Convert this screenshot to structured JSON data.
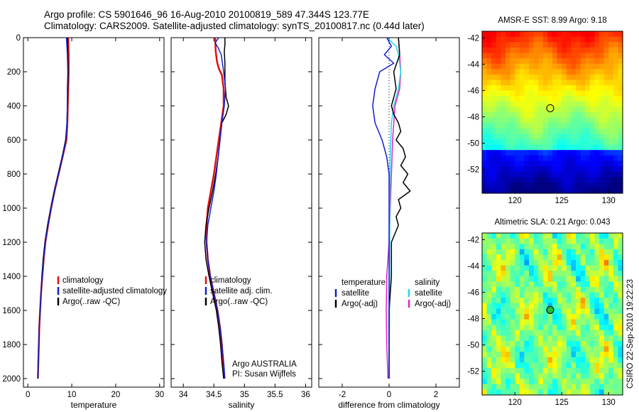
{
  "header": {
    "title_line1": "Argo profile: CS 5901646_96 16-Aug-2010 20100819_589 47.344S 123.77E",
    "title_line2": "Climatology: CARS2009. Satellite-adjusted climatology: synTS_20100817.nc (0.44d later)"
  },
  "colors": {
    "climatology": "#e01010",
    "satellite": "#1020d0",
    "argo": "#000000",
    "temperature_diff": "#1020d0",
    "salinity_satellite": "#20d8e8",
    "salinity_argo": "#e020d0"
  },
  "footer": {
    "stamp": "CSIRO 22-Sep-2010 19:22:23"
  },
  "chart_data": [
    {
      "id": "temperature",
      "type": "line",
      "xlabel": "temperature",
      "xlim": [
        -1,
        31
      ],
      "xticks": [
        0,
        10,
        20,
        30
      ],
      "ylim": [
        2050,
        0
      ],
      "yticks": [
        0,
        200,
        400,
        600,
        800,
        1000,
        1200,
        1400,
        1600,
        1800,
        2000
      ],
      "legend": [
        {
          "label": "climatology",
          "series": "climatology"
        },
        {
          "label": "satellite-adjusted climatology",
          "series": "satellite"
        },
        {
          "label": "Argo(..raw -QC)",
          "series": "argo"
        }
      ],
      "series": [
        {
          "key": "climatology",
          "color": "#e01010",
          "width": 2.5,
          "points": [
            [
              9.2,
              0
            ],
            [
              9.3,
              100
            ],
            [
              9.3,
              200
            ],
            [
              9.2,
              300
            ],
            [
              9.1,
              400
            ],
            [
              9.0,
              500
            ],
            [
              8.8,
              600
            ],
            [
              7.9,
              700
            ],
            [
              7.0,
              800
            ],
            [
              6.1,
              900
            ],
            [
              5.3,
              1000
            ],
            [
              4.6,
              1100
            ],
            [
              4.0,
              1200
            ],
            [
              3.6,
              1300
            ],
            [
              3.3,
              1400
            ],
            [
              3.0,
              1500
            ],
            [
              2.8,
              1600
            ],
            [
              2.6,
              1700
            ],
            [
              2.5,
              1800
            ],
            [
              2.4,
              1900
            ],
            [
              2.3,
              2000
            ]
          ]
        },
        {
          "key": "argo",
          "color": "#000000",
          "width": 1.5,
          "points": [
            [
              9.0,
              0
            ],
            [
              9.1,
              100
            ],
            [
              9.2,
              200
            ],
            [
              9.1,
              300
            ],
            [
              9.0,
              400
            ],
            [
              8.9,
              500
            ],
            [
              8.6,
              600
            ],
            [
              7.8,
              700
            ],
            [
              6.9,
              800
            ],
            [
              6.0,
              900
            ],
            [
              5.2,
              1000
            ],
            [
              4.5,
              1100
            ],
            [
              3.9,
              1200
            ],
            [
              3.5,
              1300
            ],
            [
              3.2,
              1400
            ],
            [
              3.0,
              1500
            ],
            [
              2.8,
              1600
            ],
            [
              2.6,
              1700
            ],
            [
              2.5,
              1800
            ],
            [
              2.4,
              1900
            ],
            [
              2.3,
              2000
            ]
          ]
        },
        {
          "key": "satellite",
          "color": "#1020d0",
          "width": 1.5,
          "points": [
            [
              8.8,
              0
            ],
            [
              9.0,
              100
            ],
            [
              9.1,
              200
            ],
            [
              9.0,
              300
            ],
            [
              9.0,
              400
            ],
            [
              8.9,
              500
            ],
            [
              8.7,
              600
            ],
            [
              7.9,
              700
            ],
            [
              7.0,
              800
            ],
            [
              6.1,
              900
            ],
            [
              5.3,
              1000
            ],
            [
              4.6,
              1100
            ],
            [
              4.0,
              1200
            ],
            [
              3.6,
              1300
            ],
            [
              3.3,
              1400
            ],
            [
              3.0,
              1500
            ],
            [
              2.8,
              1600
            ],
            [
              2.6,
              1700
            ],
            [
              2.5,
              1800
            ],
            [
              2.4,
              1900
            ],
            [
              2.3,
              2000
            ]
          ]
        }
      ]
    },
    {
      "id": "salinity",
      "type": "line",
      "xlabel": "salinity",
      "xlim": [
        33.8,
        36.1
      ],
      "xticks": [
        34,
        34.5,
        35,
        35.5,
        36
      ],
      "ylim": [
        2050,
        0
      ],
      "yticks": [
        0,
        200,
        400,
        600,
        800,
        1000,
        1200,
        1400,
        1600,
        1800,
        2000
      ],
      "legend": [
        {
          "label": "climatology",
          "series": "climatology"
        },
        {
          "label": "satellite adj. clim.",
          "series": "satellite"
        },
        {
          "label": "Argo(..raw -QC)",
          "series": "argo"
        }
      ],
      "annotation": [
        "Argo AUSTRALIA",
        "PI: Susan Wijffels"
      ],
      "series": [
        {
          "key": "climatology",
          "color": "#e01010",
          "width": 2.5,
          "points": [
            [
              34.52,
              0
            ],
            [
              34.53,
              80
            ],
            [
              34.55,
              140
            ],
            [
              34.58,
              180
            ],
            [
              34.63,
              220
            ],
            [
              34.66,
              300
            ],
            [
              34.66,
              400
            ],
            [
              34.62,
              500
            ],
            [
              34.58,
              600
            ],
            [
              34.54,
              700
            ],
            [
              34.5,
              800
            ],
            [
              34.45,
              900
            ],
            [
              34.4,
              1000
            ],
            [
              34.38,
              1100
            ],
            [
              34.38,
              1200
            ],
            [
              34.4,
              1300
            ],
            [
              34.44,
              1400
            ],
            [
              34.5,
              1500
            ],
            [
              34.56,
              1600
            ],
            [
              34.6,
              1700
            ],
            [
              34.63,
              1800
            ],
            [
              34.65,
              1900
            ],
            [
              34.67,
              2000
            ]
          ]
        },
        {
          "key": "argo",
          "color": "#000000",
          "width": 1.5,
          "points": [
            [
              34.68,
              0
            ],
            [
              34.68,
              40
            ],
            [
              34.67,
              80
            ],
            [
              34.68,
              150
            ],
            [
              34.68,
              250
            ],
            [
              34.7,
              350
            ],
            [
              34.74,
              400
            ],
            [
              34.7,
              450
            ],
            [
              34.63,
              500
            ],
            [
              34.6,
              600
            ],
            [
              34.57,
              700
            ],
            [
              34.53,
              800
            ],
            [
              34.48,
              900
            ],
            [
              34.42,
              1000
            ],
            [
              34.37,
              1100
            ],
            [
              34.35,
              1200
            ],
            [
              34.37,
              1300
            ],
            [
              34.42,
              1400
            ],
            [
              34.48,
              1500
            ],
            [
              34.54,
              1600
            ],
            [
              34.58,
              1700
            ],
            [
              34.61,
              1800
            ],
            [
              34.63,
              1900
            ],
            [
              34.66,
              2000
            ]
          ]
        },
        {
          "key": "satellite",
          "color": "#1020d0",
          "width": 1.5,
          "points": [
            [
              34.58,
              0
            ],
            [
              34.52,
              30
            ],
            [
              34.57,
              60
            ],
            [
              34.62,
              100
            ],
            [
              34.66,
              200
            ],
            [
              34.69,
              300
            ],
            [
              34.67,
              400
            ],
            [
              34.63,
              500
            ],
            [
              34.6,
              600
            ],
            [
              34.57,
              700
            ],
            [
              34.54,
              800
            ],
            [
              34.5,
              900
            ],
            [
              34.45,
              1000
            ],
            [
              34.4,
              1100
            ],
            [
              34.38,
              1200
            ],
            [
              34.4,
              1300
            ],
            [
              34.44,
              1400
            ],
            [
              34.5,
              1500
            ],
            [
              34.56,
              1600
            ],
            [
              34.6,
              1700
            ],
            [
              34.63,
              1800
            ],
            [
              34.66,
              1900
            ],
            [
              34.68,
              2000
            ]
          ]
        }
      ]
    },
    {
      "id": "difference",
      "type": "line",
      "xlabel": "difference from climatology",
      "xlim": [
        -3,
        3
      ],
      "xticks": [
        -2,
        0,
        2
      ],
      "ylim": [
        2050,
        0
      ],
      "yticks": [
        0,
        200,
        400,
        600,
        800,
        1000,
        1200,
        1400,
        1600,
        1800,
        2000
      ],
      "zero_line": true,
      "legend_columns": [
        {
          "heading": "temperature",
          "items": [
            {
              "label": "satellite",
              "series": "t_sat"
            },
            {
              "label": "Argo(-adj)",
              "series": "t_argo"
            }
          ]
        },
        {
          "heading": "salinity",
          "items": [
            {
              "label": "satellite",
              "series": "s_sat"
            },
            {
              "label": "Argo(-adj)",
              "series": "s_argo"
            }
          ]
        }
      ],
      "series": [
        {
          "key": "s_argo",
          "color": "#e020d0",
          "width": 1.5,
          "points": [
            [
              0.4,
              0
            ],
            [
              0.45,
              100
            ],
            [
              0.5,
              200
            ],
            [
              0.45,
              300
            ],
            [
              0.25,
              400
            ],
            [
              0.15,
              600
            ],
            [
              0.1,
              800
            ],
            [
              0.05,
              1000
            ],
            [
              0.0,
              1200
            ],
            [
              -0.1,
              1400
            ],
            [
              -0.12,
              1600
            ],
            [
              -0.1,
              1800
            ],
            [
              -0.05,
              2000
            ]
          ]
        },
        {
          "key": "s_sat",
          "color": "#20d8e8",
          "width": 1.5,
          "points": [
            [
              -0.1,
              0
            ],
            [
              0.3,
              50
            ],
            [
              0.4,
              100
            ],
            [
              0.5,
              200
            ],
            [
              0.4,
              300
            ],
            [
              0.2,
              400
            ],
            [
              0.1,
              500
            ],
            [
              0.05,
              700
            ],
            [
              0.03,
              1000
            ],
            [
              0.02,
              1500
            ],
            [
              0.0,
              2000
            ]
          ]
        },
        {
          "key": "t_argo",
          "color": "#000000",
          "width": 1.5,
          "points": [
            [
              0.4,
              0
            ],
            [
              0.45,
              100
            ],
            [
              0.2,
              200
            ],
            [
              0.3,
              300
            ],
            [
              0.1,
              400
            ],
            [
              0.2,
              450
            ],
            [
              0.4,
              500
            ],
            [
              0.5,
              550
            ],
            [
              0.3,
              600
            ],
            [
              0.6,
              650
            ],
            [
              0.7,
              700
            ],
            [
              0.5,
              750
            ],
            [
              0.8,
              800
            ],
            [
              0.6,
              850
            ],
            [
              0.9,
              900
            ],
            [
              0.4,
              950
            ],
            [
              0.5,
              1000
            ],
            [
              0.3,
              1050
            ],
            [
              0.4,
              1100
            ],
            [
              0.1,
              1200
            ],
            [
              0.1,
              1400
            ],
            [
              0.0,
              1600
            ],
            [
              0.0,
              2000
            ]
          ]
        },
        {
          "key": "t_sat",
          "color": "#1020d0",
          "width": 1.5,
          "points": [
            [
              -0.1,
              0
            ],
            [
              0.1,
              50
            ],
            [
              -0.2,
              100
            ],
            [
              0.2,
              150
            ],
            [
              -0.4,
              200
            ],
            [
              -0.6,
              300
            ],
            [
              -0.7,
              400
            ],
            [
              -0.6,
              500
            ],
            [
              -0.3,
              600
            ],
            [
              -0.1,
              700
            ],
            [
              0.0,
              800
            ],
            [
              0.0,
              1000
            ],
            [
              0.0,
              1500
            ],
            [
              0.0,
              2000
            ]
          ]
        }
      ]
    },
    {
      "id": "sst_map",
      "type": "heatmap",
      "title": "AMSR-E SST: 8.99  Argo: 9.18",
      "xlim": [
        116.5,
        131.5
      ],
      "ylim": [
        -53.8,
        -41.5
      ],
      "xticks": [
        120,
        125,
        130
      ],
      "yticks": [
        -42,
        -44,
        -46,
        -48,
        -50,
        -52
      ],
      "marker": {
        "lon": 123.77,
        "lat": -47.344,
        "fill": "none"
      }
    },
    {
      "id": "sla_map",
      "type": "heatmap",
      "title": "Altimetric SLA: 0.21  Argo: 0.043",
      "xlim": [
        116.5,
        131.5
      ],
      "ylim": [
        -53.8,
        -41.5
      ],
      "xticks": [
        120,
        125,
        130
      ],
      "yticks": [
        -42,
        -44,
        -46,
        -48,
        -50,
        -52
      ],
      "marker": {
        "lon": 123.77,
        "lat": -47.344,
        "fill": "#20c040"
      }
    }
  ]
}
